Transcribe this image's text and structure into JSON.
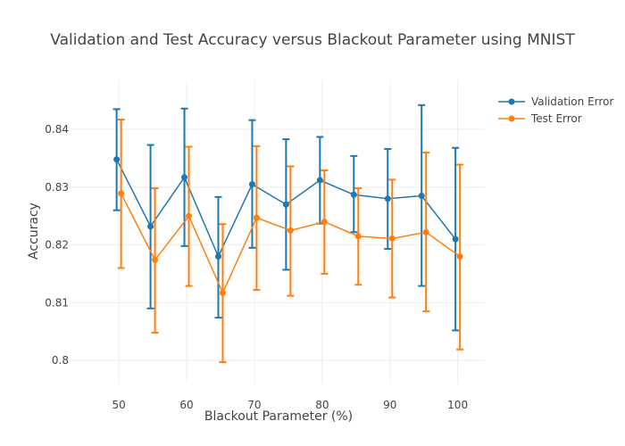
{
  "chart_data": {
    "type": "line",
    "title": "Validation and Test Accuracy versus Blackout Parameter using MNIST",
    "xlabel": "Blackout Parameter (%)",
    "ylabel": "Accuracy",
    "xlim": [
      43,
      104
    ],
    "ylim": [
      0.796,
      0.8485
    ],
    "x_ticks": [
      "50",
      "60",
      "70",
      "80",
      "90",
      "100"
    ],
    "x_tick_values": [
      50,
      60,
      70,
      80,
      90,
      100
    ],
    "y_ticks": [
      "0.8",
      "0.81",
      "0.82",
      "0.83",
      "0.84"
    ],
    "y_tick_values": [
      0.8,
      0.81,
      0.82,
      0.83,
      0.84
    ],
    "grid": true,
    "legend_position": "top-right",
    "series": [
      {
        "name": "Validation Error",
        "color": "#1f77b4",
        "x": [
          50,
          55,
          60,
          65,
          70,
          75,
          80,
          85,
          90,
          95,
          100
        ],
        "y": [
          0.8348,
          0.8232,
          0.8317,
          0.818,
          0.8305,
          0.827,
          0.8312,
          0.8287,
          0.828,
          0.8285,
          0.821
        ],
        "error_low": [
          0.826,
          0.809,
          0.8198,
          0.8074,
          0.8195,
          0.8157,
          0.8237,
          0.8222,
          0.8193,
          0.8129,
          0.8052
        ],
        "error_high": [
          0.8435,
          0.8373,
          0.8436,
          0.8283,
          0.8416,
          0.8383,
          0.8387,
          0.8354,
          0.8366,
          0.8442,
          0.8368
        ]
      },
      {
        "name": "Test Error",
        "color": "#ff7f0e",
        "x": [
          50,
          55,
          60,
          65,
          70,
          75,
          80,
          85,
          90,
          95,
          100
        ],
        "y": [
          0.8289,
          0.8174,
          0.825,
          0.8117,
          0.8247,
          0.8225,
          0.824,
          0.8215,
          0.8211,
          0.8222,
          0.818
        ],
        "error_low": [
          0.816,
          0.8048,
          0.8129,
          0.7997,
          0.8122,
          0.8112,
          0.815,
          0.8131,
          0.8109,
          0.8085,
          0.8019
        ],
        "error_high": [
          0.8417,
          0.8298,
          0.837,
          0.8236,
          0.8371,
          0.8336,
          0.8329,
          0.8298,
          0.8313,
          0.836,
          0.8339
        ]
      }
    ]
  }
}
